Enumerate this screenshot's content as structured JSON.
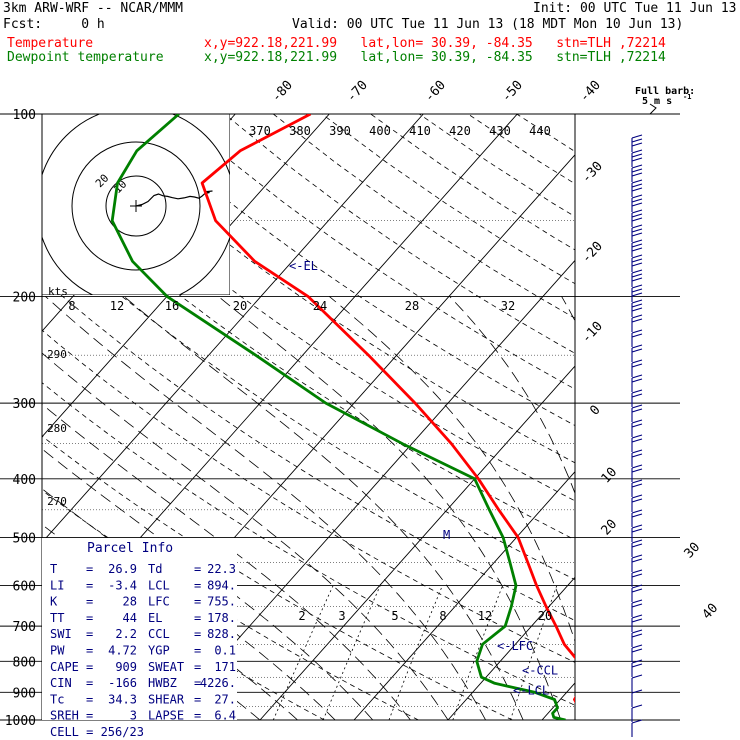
{
  "header": {
    "model": "3km ARW-WRF -- NCAR/MMM",
    "init": "Init: 00 UTC Tue 11 Jun 13",
    "fcst": "Fcst:     0 h",
    "valid": "Valid: 00 UTC Tue 11 Jun 13 (18 MDT Mon 10 Jun 13)",
    "temp_label": "Temperature",
    "temp_loc": "x,y=922.18,221.99   lat,lon= 30.39, -84.35   stn=TLH ,72214",
    "dew_label": "Dewpoint temperature",
    "dew_loc": "x,y=922.18,221.99   lat,lon= 30.39, -84.35   stn=TLH ,72214"
  },
  "colors": {
    "temperature": "#ff0000",
    "dewpoint": "#008000",
    "annotation": "#000080",
    "frame": "#000000"
  },
  "chart_data": {
    "type": "skew-t log-p",
    "pressure_levels": [
      100,
      200,
      300,
      400,
      500,
      600,
      700,
      800,
      900,
      1000
    ],
    "isotherm_labels": [
      "-80",
      "-70",
      "-60",
      "-50",
      "-40",
      "-30",
      "-20",
      "-10",
      "0",
      "10",
      "20",
      "30",
      "40"
    ],
    "theta_labels": [
      "370",
      "380",
      "390",
      "400",
      "410",
      "420",
      "430",
      "440"
    ],
    "dry_adiabat_labels": [
      "290",
      "280",
      "270"
    ],
    "mixing_ratio_labels": [
      "2",
      "3",
      "5",
      "8",
      "12",
      "20"
    ],
    "moist_adiabat_labels": [
      "8",
      "12",
      "16",
      "20",
      "24",
      "28",
      "32"
    ],
    "temperature": {
      "name": "Temperature",
      "points": [
        [
          1000,
          29.5
        ],
        [
          990,
          27
        ],
        [
          975,
          24
        ],
        [
          955,
          22.8
        ],
        [
          925,
          21.5
        ],
        [
          900,
          21.3
        ],
        [
          870,
          20.8
        ],
        [
          850,
          20.2
        ],
        [
          800,
          18.3
        ],
        [
          750,
          15.2
        ],
        [
          700,
          12.6
        ],
        [
          650,
          9.7
        ],
        [
          600,
          6.7
        ],
        [
          550,
          3.6
        ],
        [
          500,
          0.2
        ],
        [
          450,
          -4.5
        ],
        [
          400,
          -9.6
        ],
        [
          350,
          -15.8
        ],
        [
          300,
          -23.5
        ],
        [
          250,
          -33
        ],
        [
          200,
          -45
        ],
        [
          175,
          -54
        ],
        [
          150,
          -62
        ],
        [
          130,
          -67
        ],
        [
          115,
          -66
        ],
        [
          100,
          -62
        ]
      ]
    },
    "dewpoint": {
      "name": "Dewpoint temperature",
      "points": [
        [
          1000,
          22.5
        ],
        [
          990,
          21
        ],
        [
          975,
          20.5
        ],
        [
          955,
          20.5
        ],
        [
          925,
          19.4
        ],
        [
          900,
          16.6
        ],
        [
          870,
          11.5
        ],
        [
          850,
          9.5
        ],
        [
          800,
          7.5
        ],
        [
          750,
          6.5
        ],
        [
          700,
          7.2
        ],
        [
          650,
          6
        ],
        [
          600,
          4.5
        ],
        [
          550,
          1.7
        ],
        [
          500,
          -1.4
        ],
        [
          450,
          -5.5
        ],
        [
          400,
          -10
        ],
        [
          350,
          -21
        ],
        [
          300,
          -33
        ],
        [
          250,
          -45
        ],
        [
          200,
          -60
        ],
        [
          175,
          -67
        ],
        [
          150,
          -73
        ],
        [
          130,
          -76
        ],
        [
          115,
          -77
        ],
        [
          100,
          -76
        ]
      ]
    },
    "level_markers": [
      {
        "label": "<-EL",
        "p": 178
      },
      {
        "label": "<-LFC",
        "p": 755
      },
      {
        "label": "<-CCL",
        "p": 828
      },
      {
        "label": "<-LCL",
        "p": 894
      }
    ],
    "other_markers": [
      {
        "label": "M",
        "p": 495
      }
    ],
    "wind_profile_label": {
      "line1": "Full barb:",
      "line2": "5 m s",
      "superscript": "-1"
    },
    "hodograph": {
      "kts_label": "kts",
      "ring_labels": [
        "20",
        "10"
      ],
      "trace": [
        [
          0,
          0
        ],
        [
          2,
          0.5
        ],
        [
          4,
          1.5
        ],
        [
          6,
          3.5
        ],
        [
          7.5,
          4
        ],
        [
          9,
          3.4
        ],
        [
          10.5,
          3.2
        ],
        [
          12,
          2.8
        ],
        [
          14,
          2.4
        ],
        [
          16,
          2.7
        ],
        [
          18,
          3.2
        ],
        [
          19.5,
          3
        ],
        [
          21,
          2.6
        ],
        [
          22,
          3.3
        ],
        [
          23,
          4.2
        ],
        [
          24.5,
          4.5
        ],
        [
          23.5,
          4.8
        ],
        [
          25.5,
          5
        ]
      ]
    }
  },
  "parcel_info": {
    "title": "Parcel Info",
    "rows": [
      {
        "k1": "T",
        "v1": "26.9",
        "k2": "Td",
        "v2": "22.3"
      },
      {
        "k1": "LI",
        "v1": "-3.4",
        "k2": "LCL",
        "v2": "894."
      },
      {
        "k1": "K",
        "v1": "28",
        "k2": "LFC",
        "v2": "755."
      },
      {
        "k1": "TT",
        "v1": "44",
        "k2": "EL",
        "v2": "178."
      },
      {
        "k1": "SWI",
        "v1": "2.2",
        "k2": "CCL",
        "v2": "828."
      },
      {
        "k1": "PW",
        "v1": "4.72",
        "k2": "YGP",
        "v2": "0.1"
      },
      {
        "k1": "CAPE",
        "v1": "909",
        "k2": "SWEAT",
        "v2": "171"
      },
      {
        "k1": "CIN",
        "v1": "-166",
        "k2": "HWBZ",
        "v2": "4226."
      },
      {
        "k1": "Tc",
        "v1": "34.3",
        "k2": "SHEAR",
        "v2": "27."
      },
      {
        "k1": "SREH",
        "v1": "3",
        "k2": "LAPSE",
        "v2": "6.4"
      }
    ],
    "cell": "CELL = 256/23"
  }
}
